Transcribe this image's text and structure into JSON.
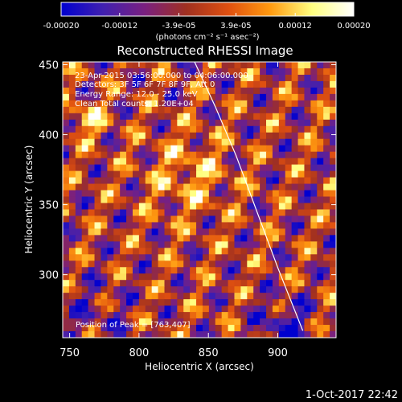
{
  "chart_data": {
    "type": "heatmap",
    "title": "Reconstructed RHESSI Image",
    "xlabel": "Heliocentric X (arcsec)",
    "ylabel": "Heliocentric Y (arcsec)",
    "xlim": [
      745,
      942
    ],
    "ylim": [
      255,
      452
    ],
    "x_ticks": [
      "750",
      "800",
      "850",
      "900"
    ],
    "x_tick_values": [
      750,
      800,
      850,
      900
    ],
    "y_ticks": [
      "300",
      "350",
      "400",
      "450"
    ],
    "y_tick_values": [
      300,
      350,
      400,
      450
    ],
    "colorbar": {
      "range": [
        -0.0002,
        0.0002
      ],
      "tick_labels": [
        "-0.00020",
        "-0.00012",
        "-3.9e-05",
        "3.9e-05",
        "0.00012",
        "0.00020"
      ],
      "tick_values": [
        -0.0002,
        -0.00012,
        -3.9e-05,
        3.9e-05,
        0.00012,
        0.0002
      ],
      "unit_label": "(photons cm⁻² s⁻¹ asec⁻²)",
      "colors": [
        "#0000d0",
        "#4020b0",
        "#7a2080",
        "#a03020",
        "#e05010",
        "#ff9a10",
        "#ffff80",
        "#ffffff"
      ]
    },
    "annotations": [
      "23-Apr-2015 03:56:00.000 to 04:06:00.000",
      "Detectors: 3F 5F 6F 7F 8F 9F, Att 0",
      "Energy Range: 12.0 - 25.0 keV",
      "Clean    Total counts: 1.20E+04"
    ],
    "peak_label": "Position of Peak = [763,407]",
    "peak_position": [
      763,
      407
    ],
    "limb_curve": [
      [
        840,
        452
      ],
      [
        855,
        420
      ],
      [
        870,
        385
      ],
      [
        885,
        345
      ],
      [
        900,
        305
      ],
      [
        918,
        260
      ]
    ]
  },
  "footer": {
    "date": "1-Oct-2017 22:42"
  }
}
